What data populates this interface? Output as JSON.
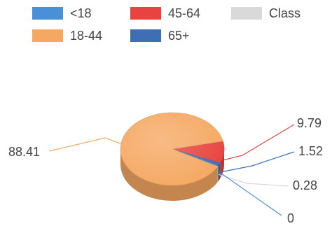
{
  "chart_data": {
    "type": "pie",
    "style": "3d",
    "title": "",
    "legend_position": "top",
    "slices": [
      {
        "label": "<18",
        "value": 0,
        "color": "#4a90d9"
      },
      {
        "label": "18-44",
        "value": 88.41,
        "color": "#f5a862"
      },
      {
        "label": "45-64",
        "value": 9.79,
        "color": "#e8433f"
      },
      {
        "label": "65+",
        "value": 1.52,
        "color": "#3e6fb5"
      },
      {
        "label": "Class",
        "value": 0.28,
        "color": "#d9d9d9"
      }
    ],
    "data_labels": [
      "0",
      "88.41",
      "9.79",
      "1.52",
      "0.28"
    ]
  }
}
